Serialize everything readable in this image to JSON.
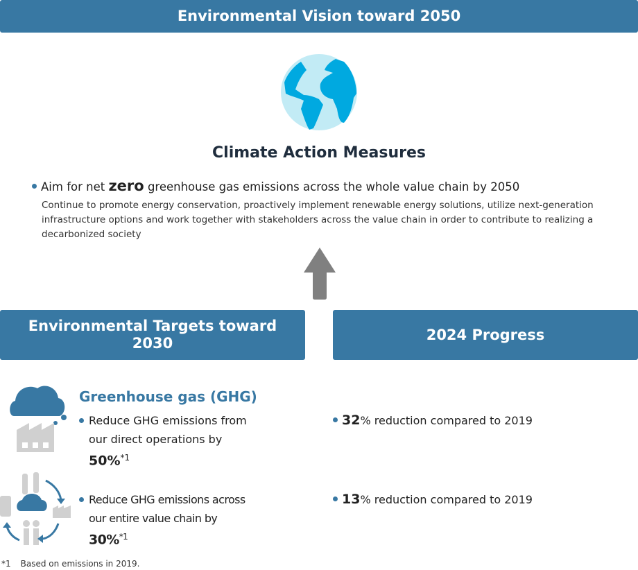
{
  "header": {
    "title": "Environmental Vision toward 2050"
  },
  "vision": {
    "heading": "Climate Action Measures",
    "aim_prefix": "Aim for net ",
    "aim_bold": "zero",
    "aim_suffix": " greenhouse gas emissions across the whole value chain by 2050",
    "description": "Continue to promote energy conservation, proactively implement renewable energy solutions, utilize next-generation infrastructure options and work together with stakeholders across the value chain in order to contribute to realizing a decarbonized society"
  },
  "targets_header": "Environmental Targets toward 2030",
  "progress_header": "2024 Progress",
  "ghg": {
    "title": "Greenhouse gas (GHG)",
    "items": [
      {
        "target": "Reduce GHG emissions from our direct operations by",
        "value": "50%",
        "note": "*1",
        "progress_value": "32",
        "progress_text": "% reduction compared to 2019"
      },
      {
        "target": "Reduce GHG emissions across our entire value chain by",
        "value": "30%",
        "note": "*1",
        "progress_value": "13",
        "progress_text": "% reduction compared to 2019"
      }
    ]
  },
  "footnote": {
    "mark": "*1",
    "text": "Based on emissions in 2019."
  },
  "colors": {
    "accent": "#3878a3",
    "globe_land": "#00a9e0",
    "globe_sea": "#c2ebf5",
    "arrow": "#808080",
    "icon_gray": "#d0d0d0"
  }
}
